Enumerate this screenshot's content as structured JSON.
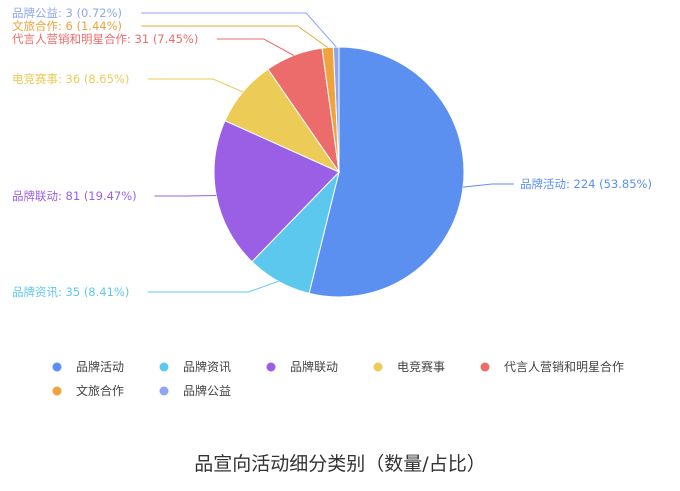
{
  "chart_data": {
    "type": "pie",
    "title": "品宣向活动细分类别（数量/占比）",
    "series": [
      {
        "name": "品牌活动",
        "value": 224,
        "percent": "53.85%",
        "label": "品牌活动: 224  (53.85%)",
        "color": "#5b8ff0"
      },
      {
        "name": "品牌资讯",
        "value": 35,
        "percent": "8.41%",
        "label": "品牌资讯: 35  (8.41%)",
        "color": "#5dc8ee"
      },
      {
        "name": "品牌联动",
        "value": 81,
        "percent": "19.47%",
        "label": "品牌联动: 81  (19.47%)",
        "color": "#9b5fe6"
      },
      {
        "name": "电竞赛事",
        "value": 36,
        "percent": "8.65%",
        "label": "电竞赛事: 36  (8.65%)",
        "color": "#eccb57"
      },
      {
        "name": "代言人营销和明星合作",
        "value": 31,
        "percent": "7.45%",
        "label": "代言人营销和明星合作: 31  (7.45%)",
        "color": "#ec6b6b"
      },
      {
        "name": "文旅合作",
        "value": 6,
        "percent": "1.44%",
        "label": "文旅合作: 6  (1.44%)",
        "color": "#f0a23c"
      },
      {
        "name": "品牌公益",
        "value": 3,
        "percent": "0.72%",
        "label": "品牌公益: 3  (0.72%)",
        "color": "#8ea6f2"
      }
    ],
    "legend_position": "bottom"
  }
}
